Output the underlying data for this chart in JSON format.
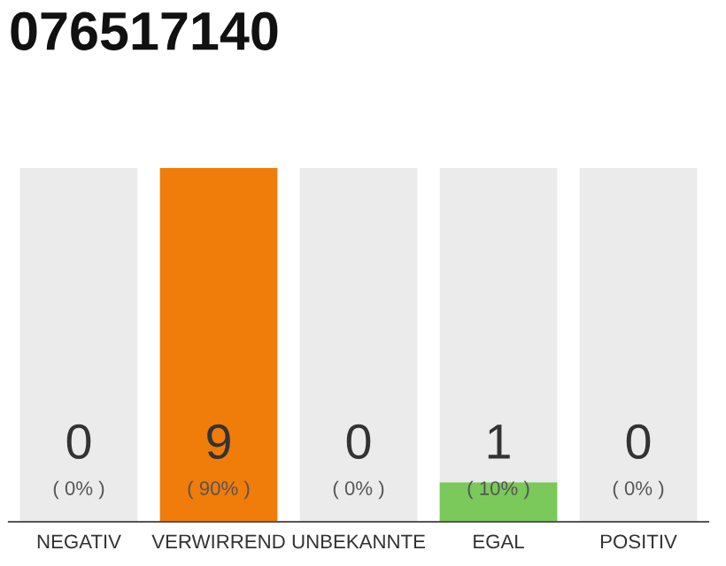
{
  "chart_data": {
    "type": "bar",
    "title": "076517140",
    "categories": [
      "NEGATIV",
      "VERWIRREND",
      "UNBEKANNTE",
      "EGAL",
      "POSITIV"
    ],
    "series": [
      {
        "color": "#ebebeb",
        "values": [
          90,
          null,
          90,
          90,
          90
        ]
      },
      {
        "colors": [
          "#f07c0a",
          "#f07c0a",
          "#f07c0a",
          "#7ac95a",
          "#f07c0a"
        ],
        "values": [
          0,
          90,
          0,
          10,
          0
        ],
        "value_labels": [
          "( 0% )",
          "( 90% )",
          "( 0% )",
          "( 10% )",
          "( 0% )"
        ]
      }
    ],
    "annotations": [
      "0",
      "9",
      "0",
      "1",
      "0"
    ],
    "tick_labels": "x",
    "grid": false,
    "legend": false
  }
}
